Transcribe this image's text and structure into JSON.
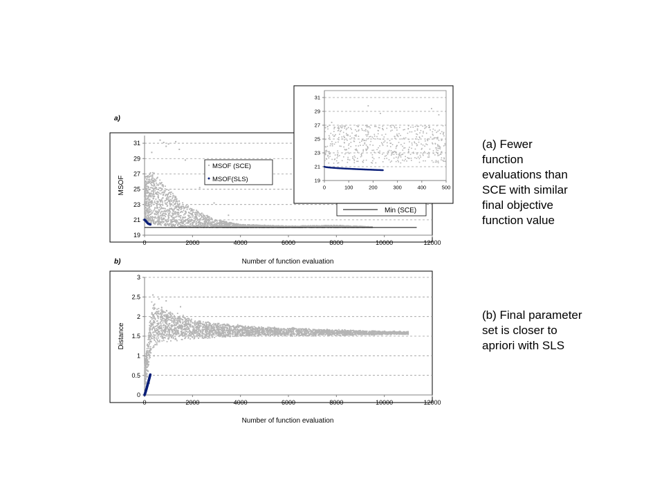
{
  "captions": {
    "a": "(a)  Fewer\nfunction\nevaluations than\nSCE with similar\nfinal objective\nfunction value",
    "b": "(b) Final parameter\nset is closer to\napriori with SLS"
  },
  "colors": {
    "sce": "#b4b4b4",
    "sls": "#0a1f78",
    "min_line": "#000000",
    "grid": "#9a9a9a",
    "frame": "#808080"
  },
  "chart_data": [
    {
      "id": "panel-a",
      "type": "scatter",
      "panel_label": "a)",
      "xlabel": "Number of function evaluation",
      "ylabel": "MSOF",
      "xlim": [
        0,
        12000
      ],
      "ylim": [
        19,
        32
      ],
      "xticks": [
        0,
        2000,
        4000,
        6000,
        8000,
        10000,
        12000
      ],
      "yticks": [
        19,
        21,
        23,
        25,
        27,
        29,
        31
      ],
      "grid": "horizontal dashed",
      "legend": [
        "MSOF (SCE)",
        "MSOF(SLS)"
      ],
      "legend_placement": "center-top",
      "line_legend": "Min (SCE)",
      "line_legend_placement": "bottom-right",
      "series": [
        {
          "name": "MSOF (SCE)",
          "kind": "scatter",
          "envelope": [
            {
              "x": 0,
              "lo": 21.0,
              "hi": 26.5
            },
            {
              "x": 300,
              "lo": 20.5,
              "hi": 27.5
            },
            {
              "x": 700,
              "lo": 20.3,
              "hi": 26.0
            },
            {
              "x": 1000,
              "lo": 20.2,
              "hi": 25.0
            },
            {
              "x": 1500,
              "lo": 20.1,
              "hi": 23.5
            },
            {
              "x": 2000,
              "lo": 20.0,
              "hi": 22.5
            },
            {
              "x": 3000,
              "lo": 20.0,
              "hi": 21.0
            },
            {
              "x": 4000,
              "lo": 20.0,
              "hi": 20.4
            },
            {
              "x": 6000,
              "lo": 20.0,
              "hi": 20.2
            },
            {
              "x": 8000,
              "lo": 20.0,
              "hi": 20.3
            },
            {
              "x": 9500,
              "lo": 20.0,
              "hi": 20.1
            }
          ],
          "outliers": [
            {
              "x": 650,
              "y": 31.4
            },
            {
              "x": 800,
              "y": 31.1
            },
            {
              "x": 900,
              "y": 30.6
            },
            {
              "x": 1000,
              "y": 30.9
            },
            {
              "x": 1300,
              "y": 31.2
            },
            {
              "x": 1450,
              "y": 30.2
            },
            {
              "x": 300,
              "y": 29.8
            },
            {
              "x": 1700,
              "y": 28.8
            },
            {
              "x": 2300,
              "y": 25.2
            },
            {
              "x": 2900,
              "y": 23.2
            },
            {
              "x": 3500,
              "y": 21.6
            }
          ]
        },
        {
          "name": "MSOF(SLS)",
          "kind": "scatter",
          "points": [
            {
              "x": 0,
              "y": 21.0
            },
            {
              "x": 40,
              "y": 20.9
            },
            {
              "x": 80,
              "y": 20.75
            },
            {
              "x": 120,
              "y": 20.6
            },
            {
              "x": 160,
              "y": 20.5
            },
            {
              "x": 200,
              "y": 20.45
            },
            {
              "x": 240,
              "y": 20.4
            }
          ]
        },
        {
          "name": "Min (SCE)",
          "kind": "line",
          "points": [
            {
              "x": 0,
              "y": 20.0
            },
            {
              "x": 11350,
              "y": 20.0
            }
          ]
        }
      ],
      "inset": {
        "xlim": [
          0,
          500
        ],
        "ylim": [
          19,
          32
        ],
        "xticks": [
          0,
          100,
          200,
          300,
          400,
          500
        ],
        "yticks": [
          19,
          21,
          23,
          25,
          27,
          29,
          31
        ],
        "grid": "horizontal dashed",
        "sce_band": {
          "lo": 21.5,
          "hi": 27.0
        },
        "sce_outliers": [
          {
            "x": 180,
            "y": 29.8
          },
          {
            "x": 230,
            "y": 28.7
          },
          {
            "x": 440,
            "y": 29.4
          },
          {
            "x": 30,
            "y": 27.4
          },
          {
            "x": 470,
            "y": 28.5
          }
        ],
        "sls_points": [
          {
            "x": 0,
            "y": 21.0
          },
          {
            "x": 50,
            "y": 20.9
          },
          {
            "x": 100,
            "y": 20.75
          },
          {
            "x": 150,
            "y": 20.65
          },
          {
            "x": 200,
            "y": 20.55
          },
          {
            "x": 240,
            "y": 20.5
          }
        ]
      }
    },
    {
      "id": "panel-b",
      "type": "scatter",
      "panel_label": "b)",
      "xlabel": "Number of function evaluation",
      "ylabel": "Distance",
      "xlim": [
        0,
        12000
      ],
      "ylim": [
        0,
        3
      ],
      "xticks": [
        0,
        2000,
        4000,
        6000,
        8000,
        10000,
        12000
      ],
      "yticks": [
        0,
        0.5,
        1,
        1.5,
        2,
        2.5,
        3
      ],
      "grid": "horizontal dashed",
      "series": [
        {
          "name": "SCE",
          "kind": "scatter",
          "envelope": [
            {
              "x": 0,
              "lo": 0.1,
              "hi": 0.8
            },
            {
              "x": 150,
              "lo": 0.5,
              "hi": 1.6
            },
            {
              "x": 300,
              "lo": 1.1,
              "hi": 2.4
            },
            {
              "x": 600,
              "lo": 1.3,
              "hi": 2.3
            },
            {
              "x": 1000,
              "lo": 1.35,
              "hi": 2.2
            },
            {
              "x": 2000,
              "lo": 1.4,
              "hi": 1.95
            },
            {
              "x": 3000,
              "lo": 1.45,
              "hi": 1.85
            },
            {
              "x": 5000,
              "lo": 1.5,
              "hi": 1.75
            },
            {
              "x": 7000,
              "lo": 1.5,
              "hi": 1.7
            },
            {
              "x": 9000,
              "lo": 1.52,
              "hi": 1.65
            },
            {
              "x": 11000,
              "lo": 1.54,
              "hi": 1.62
            }
          ],
          "outliers": [
            {
              "x": 350,
              "y": 2.55
            },
            {
              "x": 600,
              "y": 2.45
            },
            {
              "x": 900,
              "y": 2.4
            },
            {
              "x": 200,
              "y": 0.3
            },
            {
              "x": 400,
              "y": 1.0
            },
            {
              "x": 1500,
              "y": 2.25
            }
          ]
        },
        {
          "name": "SLS",
          "kind": "scatter",
          "points": [
            {
              "x": 0,
              "y": 0.0
            },
            {
              "x": 40,
              "y": 0.06
            },
            {
              "x": 80,
              "y": 0.13
            },
            {
              "x": 120,
              "y": 0.22
            },
            {
              "x": 160,
              "y": 0.32
            },
            {
              "x": 200,
              "y": 0.42
            },
            {
              "x": 240,
              "y": 0.52
            }
          ]
        }
      ]
    }
  ]
}
